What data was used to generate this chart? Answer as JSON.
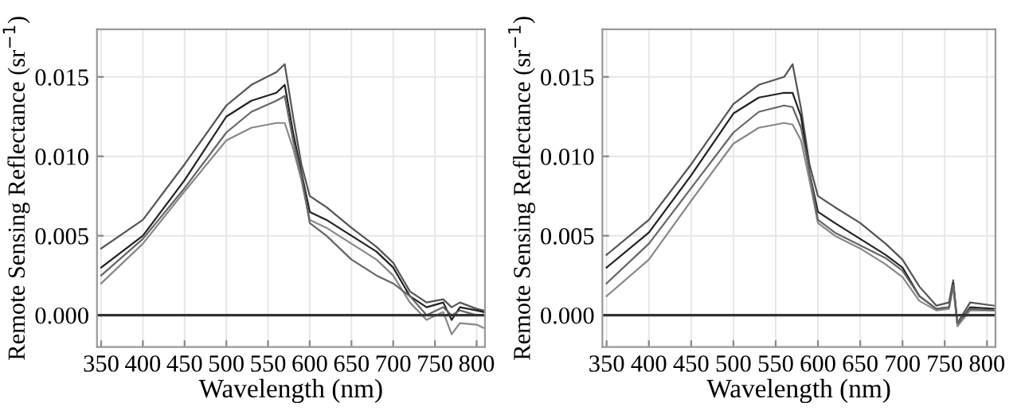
{
  "chart_data": [
    {
      "type": "line",
      "xlabel": "Wavelength (nm)",
      "ylabel": "Remote Sensing Reflectance (sr$^{−1}$)",
      "x": [
        350,
        400,
        450,
        500,
        530,
        560,
        570,
        580,
        590,
        600,
        620,
        650,
        680,
        700,
        720,
        740,
        760,
        770,
        780,
        800,
        808
      ],
      "series": [
        {
          "color": "#555555",
          "values": [
            0.0042,
            0.006,
            0.0095,
            0.0132,
            0.0145,
            0.0153,
            0.0158,
            0.0125,
            0.0095,
            0.0075,
            0.0068,
            0.0055,
            0.0043,
            0.0033,
            0.0015,
            0.0008,
            0.001,
            0.0005,
            0.0008,
            0.0004,
            0.0003
          ]
        },
        {
          "color": "#222222",
          "values": [
            0.003,
            0.005,
            0.0085,
            0.0125,
            0.0135,
            0.014,
            0.0145,
            0.0115,
            0.009,
            0.0065,
            0.006,
            0.005,
            0.004,
            0.003,
            0.0012,
            0.0005,
            0.0008,
            -0.0003,
            0.0005,
            0.0003,
            0.0002
          ]
        },
        {
          "color": "#888888",
          "values": [
            0.002,
            0.0045,
            0.0078,
            0.011,
            0.0118,
            0.0121,
            0.0121,
            0.0105,
            0.0085,
            0.006,
            0.0055,
            0.0045,
            0.0035,
            0.0025,
            0.0008,
            -0.0003,
            0.0002,
            -0.0012,
            -0.0005,
            -0.0006,
            -0.0008
          ]
        },
        {
          "color": "#666666",
          "values": [
            0.0025,
            0.0048,
            0.008,
            0.0115,
            0.0128,
            0.0135,
            0.0138,
            0.011,
            0.0088,
            0.0058,
            0.005,
            0.0035,
            0.0025,
            0.002,
            0.0012,
            0.0,
            0.0005,
            0.0,
            0.0003,
            0.0,
            0.0
          ]
        }
      ],
      "xlim": [
        345,
        810
      ],
      "xticks": [
        350,
        400,
        450,
        500,
        550,
        600,
        650,
        700,
        750,
        800
      ],
      "ylim": [
        -0.002,
        0.018
      ],
      "yticks": [
        {
          "value": 0,
          "label": "0.000"
        },
        {
          "value": 0.005,
          "label": "0.005"
        },
        {
          "value": 0.01,
          "label": "0.010"
        },
        {
          "value": 0.015,
          "label": "0.015"
        }
      ],
      "grid": true,
      "ref_lines": [
        {
          "axis": "y",
          "value": 0,
          "color": "#333333"
        }
      ]
    },
    {
      "type": "line",
      "xlabel": "Wavelength (nm)",
      "ylabel": "Remote Sensing Reflectance (sr$^{−1}$)",
      "x": [
        350,
        400,
        450,
        500,
        530,
        560,
        570,
        580,
        590,
        600,
        620,
        650,
        680,
        700,
        720,
        740,
        755,
        760,
        765,
        780,
        808
      ],
      "series": [
        {
          "color": "#555555",
          "values": [
            0.0038,
            0.006,
            0.0095,
            0.0133,
            0.0145,
            0.015,
            0.0158,
            0.013,
            0.0095,
            0.0075,
            0.0068,
            0.0058,
            0.0045,
            0.0035,
            0.0018,
            0.0006,
            0.0008,
            0.0022,
            -0.0005,
            0.0008,
            0.0006
          ]
        },
        {
          "color": "#222222",
          "values": [
            0.003,
            0.0052,
            0.0088,
            0.0127,
            0.0137,
            0.014,
            0.014,
            0.0125,
            0.009,
            0.0065,
            0.0058,
            0.0048,
            0.0038,
            0.003,
            0.0012,
            0.0004,
            0.0005,
            0.002,
            -0.0006,
            0.0005,
            0.0004
          ]
        },
        {
          "color": "#888888",
          "values": [
            0.0012,
            0.0035,
            0.0072,
            0.0108,
            0.0118,
            0.0121,
            0.012,
            0.011,
            0.0085,
            0.0058,
            0.005,
            0.0042,
            0.0032,
            0.0024,
            0.0009,
            0.0003,
            0.0004,
            0.0018,
            -0.0007,
            0.0003,
            0.0003
          ]
        },
        {
          "color": "#666666",
          "values": [
            0.002,
            0.0045,
            0.008,
            0.0115,
            0.0128,
            0.0132,
            0.0131,
            0.0118,
            0.009,
            0.006,
            0.0052,
            0.0044,
            0.0036,
            0.0028,
            0.0012,
            0.0004,
            0.0005,
            0.0019,
            -0.0005,
            0.0004,
            0.0003
          ]
        }
      ],
      "xlim": [
        345,
        810
      ],
      "xticks": [
        350,
        400,
        450,
        500,
        550,
        600,
        650,
        700,
        750,
        800
      ],
      "ylim": [
        -0.002,
        0.018
      ],
      "yticks": [
        {
          "value": 0,
          "label": "0.000"
        },
        {
          "value": 0.005,
          "label": "0.005"
        },
        {
          "value": 0.01,
          "label": "0.010"
        },
        {
          "value": 0.015,
          "label": "0.015"
        }
      ],
      "grid": true,
      "ref_lines": [
        {
          "axis": "y",
          "value": 0,
          "color": "#333333"
        }
      ]
    }
  ]
}
